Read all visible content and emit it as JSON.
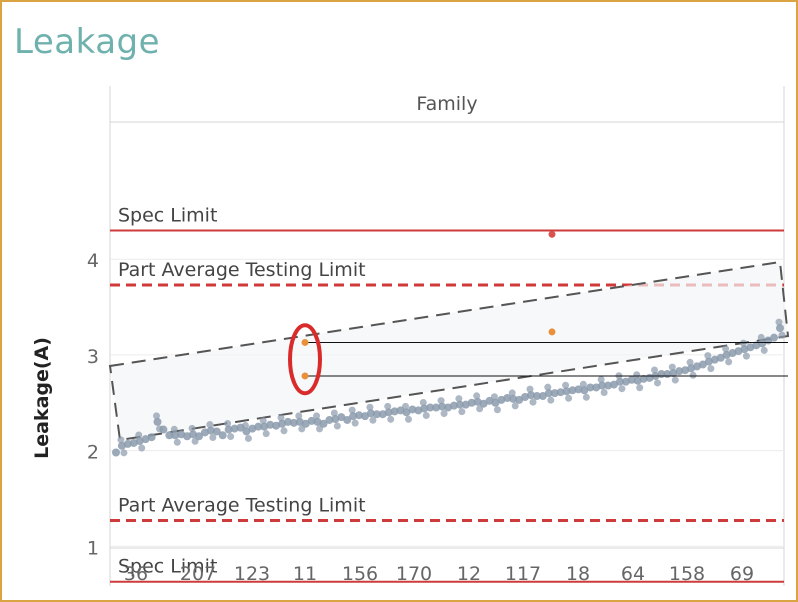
{
  "title": "Leakage",
  "chart_data": {
    "type": "scatter",
    "header": "Family",
    "ylabel": "Leakage(A)",
    "ylim": [
      0.45,
      4.8
    ],
    "yticks": [
      1,
      2,
      3,
      4
    ],
    "xtick_labels": [
      "36",
      "207",
      "123",
      "11",
      "156",
      "170",
      "12",
      "117",
      "18",
      "64",
      "158",
      "69"
    ],
    "limits": [
      {
        "label": "Spec Limit",
        "value": 4.3,
        "style": "solid",
        "color": "#cf3b3b"
      },
      {
        "label": "Part Average Testing Limit",
        "value": 3.73,
        "style": "dashed",
        "color": "#cf3b3b"
      },
      {
        "label": "Part Average Testing Limit",
        "value": 1.27,
        "style": "dashed",
        "color": "#cf3b3b"
      },
      {
        "label": "Spec Limit",
        "value": 0.63,
        "style": "solid",
        "color": "#cf3b3b"
      }
    ],
    "series": [
      {
        "color": "#8a9aab",
        "values": [
          1.98,
          2.05,
          2.07,
          2.08,
          2.1,
          2.12,
          2.14,
          2.3,
          2.22,
          2.16,
          2.16,
          2.17,
          2.15,
          2.17,
          2.15,
          2.19,
          2.21,
          2.2,
          2.16,
          2.22,
          2.23,
          2.24,
          2.2,
          2.23,
          2.25,
          2.25,
          2.27,
          2.26,
          2.28,
          2.3,
          2.29,
          2.3,
          2.28,
          2.31,
          2.3,
          2.28,
          2.32,
          2.33,
          2.35,
          2.32,
          2.36,
          2.37,
          2.36,
          2.39,
          2.38,
          2.38,
          2.4,
          2.41,
          2.42,
          2.4,
          2.43,
          2.42,
          2.44,
          2.45,
          2.45,
          2.46,
          2.45,
          2.47,
          2.48,
          2.48,
          2.5,
          2.51,
          2.49,
          2.52,
          2.5,
          2.53,
          2.55,
          2.54,
          2.53,
          2.56,
          2.58,
          2.57,
          2.57,
          2.6,
          2.6,
          2.61,
          2.62,
          2.63,
          2.64,
          2.63,
          2.66,
          2.66,
          2.68,
          2.68,
          2.69,
          2.72,
          2.72,
          2.74,
          2.73,
          2.75,
          2.76,
          2.78,
          2.8,
          2.8,
          2.81,
          2.83,
          2.84,
          2.86,
          2.88,
          2.9,
          2.93,
          2.95,
          2.97,
          3.0,
          3.02,
          3.04,
          3.06,
          3.08,
          3.1,
          3.12,
          3.15,
          3.18,
          3.28
        ]
      },
      {
        "color": "#e8913a",
        "values": [
          3.13,
          2.78,
          3.24
        ]
      },
      {
        "color": "#d9534f",
        "values": [
          4.26
        ]
      }
    ]
  }
}
